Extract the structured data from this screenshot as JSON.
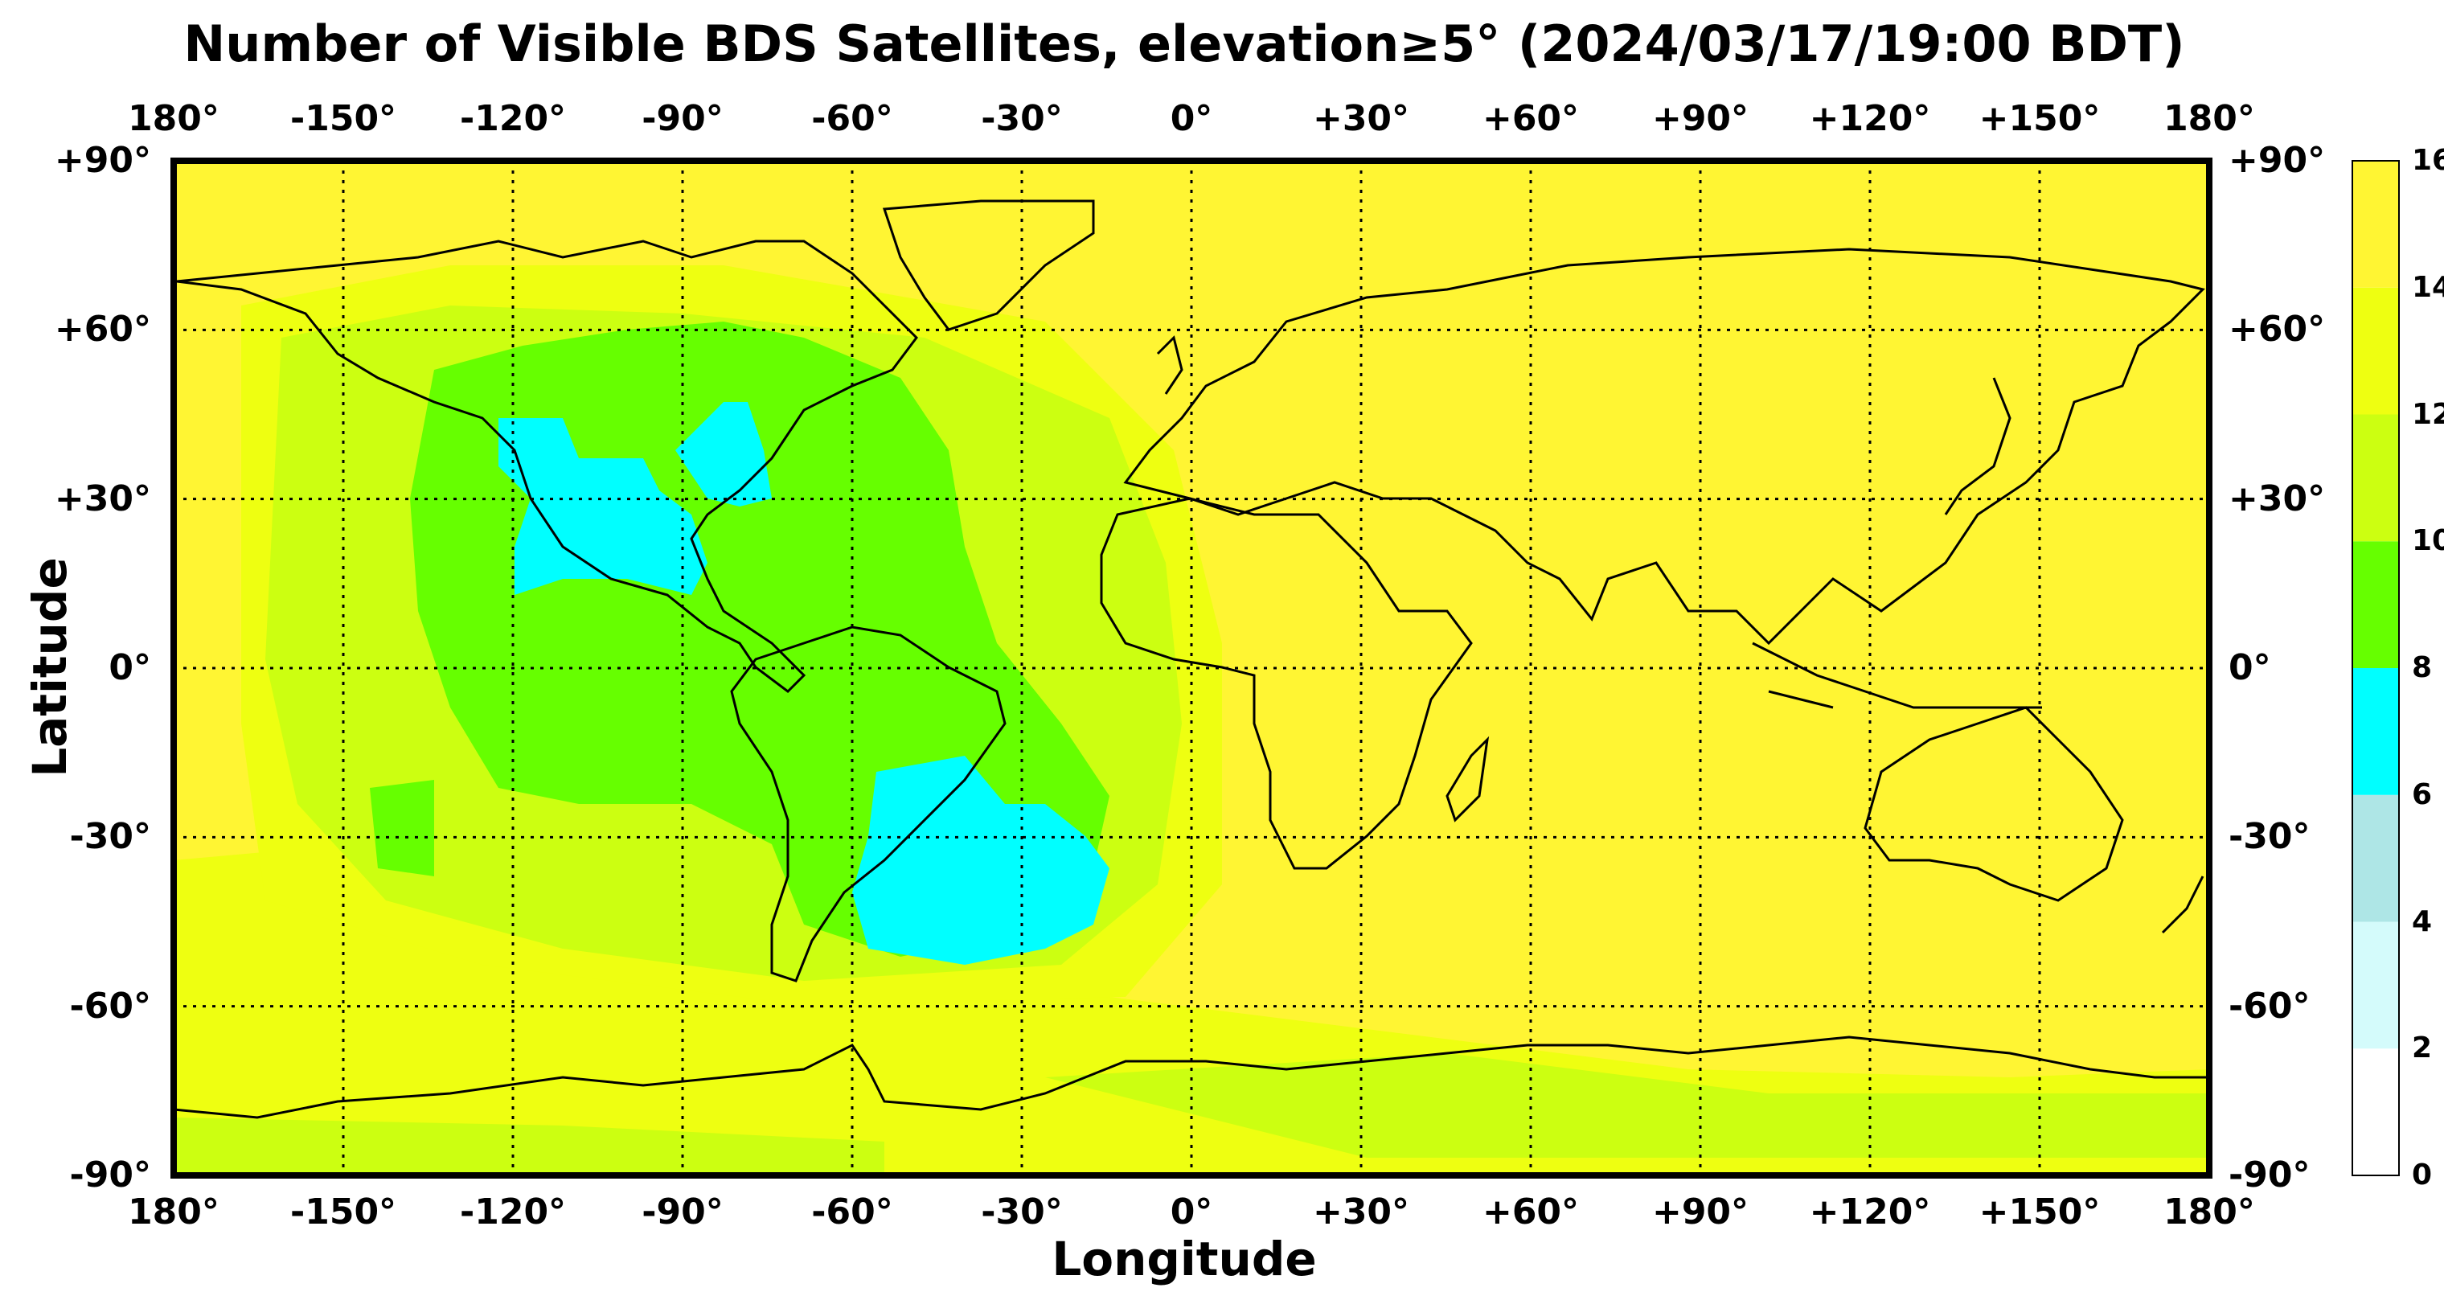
{
  "title": "Number of Visible BDS Satellites, elevation≥5° (2024/03/17/19:00 BDT)",
  "xlabel": "Longitude",
  "ylabel": "Latitude",
  "lon_ticks": [
    "180°",
    "-150°",
    "-120°",
    "-90°",
    "-60°",
    "-30°",
    "0°",
    "+30°",
    "+60°",
    "+90°",
    "+120°",
    "+150°",
    "180°"
  ],
  "lat_ticks": [
    "+90°",
    "+60°",
    "+30°",
    "0°",
    "-30°",
    "-60°",
    "-90°"
  ],
  "colorbar": {
    "ticks": [
      "16",
      "14",
      "12",
      "10",
      "8",
      "6",
      "4",
      "2",
      "0"
    ],
    "bins": [
      {
        "from": 0,
        "to": 2,
        "color": "#ffffff"
      },
      {
        "from": 2,
        "to": 4,
        "color": "#d4fbfb"
      },
      {
        "from": 4,
        "to": 6,
        "color": "#aee6e6"
      },
      {
        "from": 6,
        "to": 8,
        "color": "#00ffff"
      },
      {
        "from": 8,
        "to": 10,
        "color": "#66ff00"
      },
      {
        "from": 10,
        "to": 12,
        "color": "#ccff11"
      },
      {
        "from": 12,
        "to": 14,
        "color": "#eeff11"
      },
      {
        "from": 14,
        "to": 16,
        "color": "#fff533"
      }
    ]
  },
  "grid": true,
  "colors": {
    "land_outline": "#000000",
    "background_level": "#fff533"
  }
}
